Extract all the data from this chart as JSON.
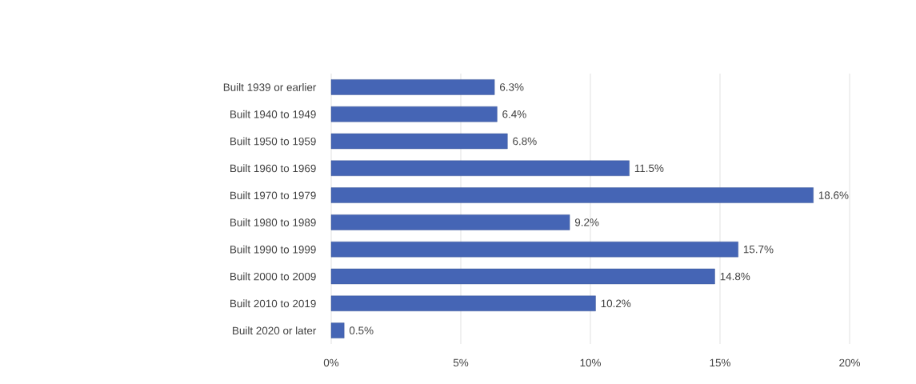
{
  "chart_data": {
    "type": "bar",
    "orientation": "horizontal",
    "categories": [
      "Built 1939 or earlier",
      "Built 1940 to 1949",
      "Built 1950 to 1959",
      "Built 1960 to 1969",
      "Built 1970 to 1979",
      "Built 1980 to 1989",
      "Built 1990 to 1999",
      "Built 2000 to 2009",
      "Built 2010 to 2019",
      "Built 2020 or later"
    ],
    "values": [
      6.3,
      6.4,
      6.8,
      11.5,
      18.6,
      9.2,
      15.7,
      14.8,
      10.2,
      0.5
    ],
    "value_labels": [
      "6.3%",
      "6.4%",
      "6.8%",
      "11.5%",
      "18.6%",
      "9.2%",
      "15.7%",
      "14.8%",
      "10.2%",
      "0.5%"
    ],
    "color": "#4565b5",
    "xlim": [
      0,
      20
    ],
    "xticks": [
      {
        "value": 0,
        "label": "0%"
      },
      {
        "value": 5,
        "label": "5%"
      },
      {
        "value": 10,
        "label": "10%"
      },
      {
        "value": 15,
        "label": "15%"
      },
      {
        "value": 20,
        "label": "20%"
      }
    ],
    "grid": "x"
  }
}
